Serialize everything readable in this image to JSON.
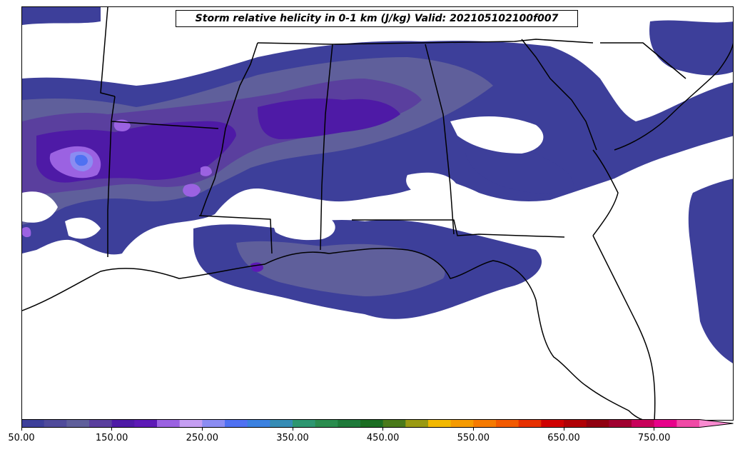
{
  "title": "Storm relative helicity in 0-1 km (J/kg) Valid: 202105102100f007",
  "colorbar": {
    "ticks": [
      "50.00",
      "150.00",
      "250.00",
      "350.00",
      "450.00",
      "550.00",
      "650.00",
      "750.00"
    ],
    "tick_values": [
      50,
      150,
      250,
      350,
      450,
      550,
      650,
      750
    ],
    "min": 50,
    "max": 800,
    "step": 25,
    "extend": "max",
    "colors": [
      "#3d3f9a",
      "#504b9b",
      "#5f5f9b",
      "#5a3f9e",
      "#4e1aa6",
      "#5d1ab6",
      "#9b62e2",
      "#c59ef2",
      "#8b8cf2",
      "#4f71f2",
      "#3b81e0",
      "#368cb5",
      "#2d9670",
      "#2a8c4e",
      "#1f7a3a",
      "#1b6d22",
      "#4a7a1a",
      "#9a9a12",
      "#f2b800",
      "#f59a00",
      "#f57a00",
      "#f25a00",
      "#e63000",
      "#d00000",
      "#b00005",
      "#900010",
      "#a00030",
      "#c8005a",
      "#e8008a",
      "#f04aa6",
      "#f98ad0"
    ]
  }
}
